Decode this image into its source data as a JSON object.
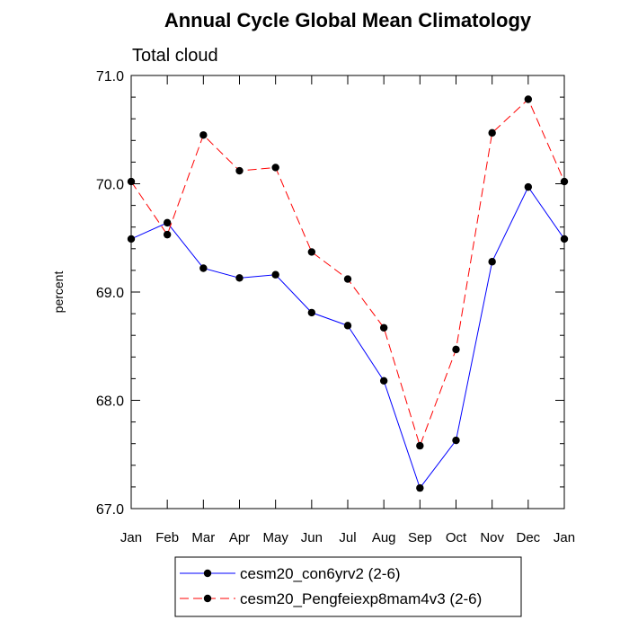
{
  "chart_data": {
    "type": "line",
    "title": "Annual Cycle Global Mean Climatology",
    "subtitle": "Total cloud",
    "xlabel": "",
    "ylabel": "percent",
    "categories": [
      "Jan",
      "Feb",
      "Mar",
      "Apr",
      "May",
      "Jun",
      "Jul",
      "Aug",
      "Sep",
      "Oct",
      "Nov",
      "Dec",
      "Jan"
    ],
    "ylim": [
      67.0,
      71.0
    ],
    "yticks": [
      "67.0",
      "68.0",
      "69.0",
      "70.0",
      "71.0"
    ],
    "grid": false,
    "legend_position": "bottom",
    "series": [
      {
        "name": "cesm20_con6yrv2 (2-6)",
        "color": "#0000ff",
        "line_style": "solid",
        "values": [
          69.49,
          69.64,
          69.22,
          69.13,
          69.16,
          68.81,
          68.69,
          68.18,
          67.19,
          67.63,
          69.28,
          69.97,
          69.49
        ]
      },
      {
        "name": "cesm20_Pengfeiexp8mam4v3 (2-6)",
        "color": "#ff0000",
        "line_style": "dashed",
        "values": [
          70.02,
          69.53,
          70.45,
          70.12,
          70.15,
          69.37,
          69.12,
          68.67,
          67.58,
          68.47,
          70.47,
          70.78,
          70.02
        ]
      }
    ]
  }
}
